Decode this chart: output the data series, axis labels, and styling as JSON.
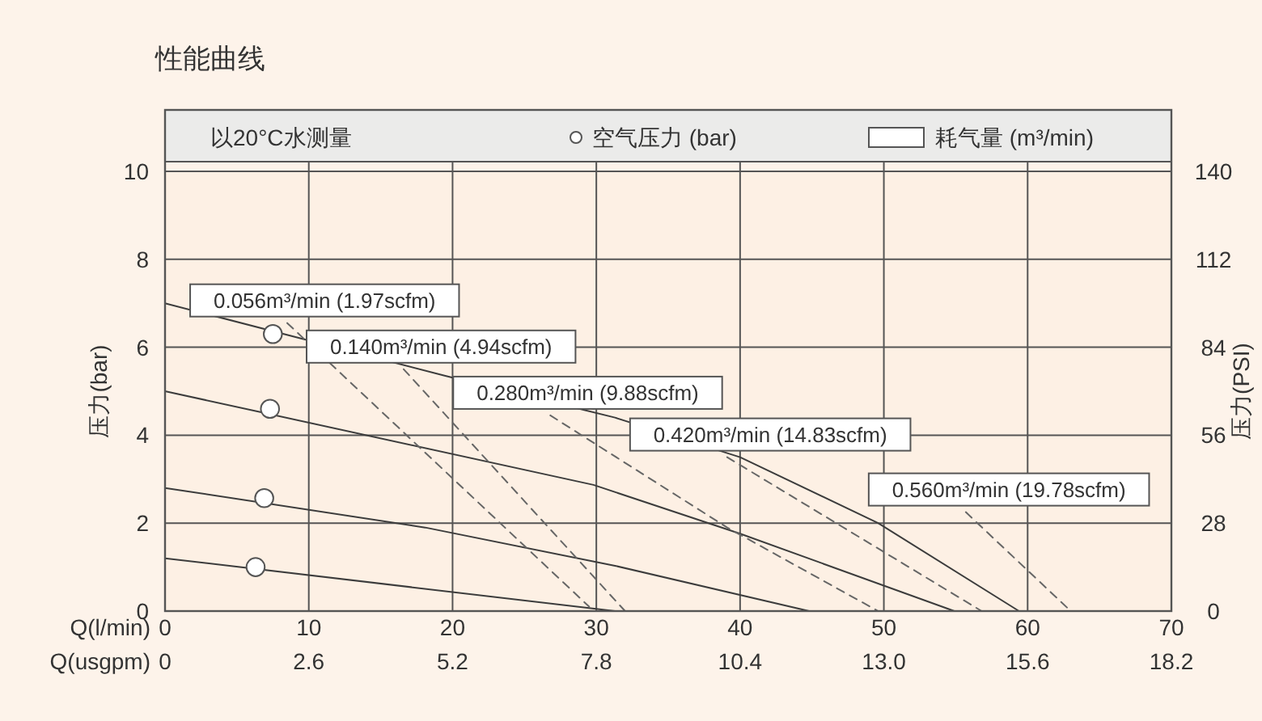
{
  "chart_data": {
    "type": "line",
    "title": "性能曲线",
    "xlabel": "Q(l/min)",
    "x2label": "Q(usgpm)",
    "ylabel": "压力(bar)",
    "y2label": "压力(PSI)",
    "xlim": [
      0,
      70
    ],
    "xticks": [
      0,
      10,
      20,
      30,
      40,
      50,
      60,
      70
    ],
    "x2lim": [
      0,
      18.2
    ],
    "x2ticks": [
      0,
      2.6,
      5.2,
      7.8,
      10.4,
      {
        "value": 13.0,
        "label": "13.0"
      },
      15.6,
      18.2
    ],
    "ylim": [
      0,
      10
    ],
    "yticks": [
      0,
      2,
      4,
      6,
      8,
      10
    ],
    "y2lim": [
      0,
      140
    ],
    "y2ticks": [
      0,
      28,
      56,
      84,
      112,
      140
    ],
    "grid": true,
    "legend": "top",
    "annotations": [
      "以20°C水测量",
      "耗气量 (m³/min)"
    ],
    "series": [
      {
        "color": "#3c3c3c",
        "line_style": "solid",
        "x": [
          0,
          19.5,
          31.3,
          40,
          49.6,
          59.4
        ],
        "values": [
          7.0,
          5.35,
          4.4,
          3.5,
          2.0,
          0
        ]
      },
      {
        "color": "#3c3c3c",
        "line_style": "solid",
        "x": [
          0,
          29.8,
          40,
          54.9
        ],
        "values": [
          5.0,
          2.87,
          1.76,
          0
        ]
      },
      {
        "color": "#3c3c3c",
        "line_style": "solid",
        "x": [
          0,
          18.1,
          31.3,
          44.8
        ],
        "values": [
          2.8,
          1.9,
          1.03,
          0
        ]
      },
      {
        "color": "#3c3c3c",
        "line_style": "solid",
        "x": [
          0,
          31.3
        ],
        "values": [
          1.2,
          0
        ]
      },
      {
        "type": "line",
        "name": "0.056m³/min (1.97scfm)",
        "color": "#666666",
        "line_style": "dashed",
        "x": [
          8.5,
          29.5
        ],
        "values": [
          6.55,
          0.1
        ]
      },
      {
        "type": "line",
        "name": "0.140m³/min (4.94scfm)",
        "color": "#666666",
        "line_style": "dashed",
        "x": [
          16.6,
          32
        ],
        "values": [
          5.5,
          0
        ]
      },
      {
        "type": "line",
        "name": "0.280m³/min (9.88scfm)",
        "color": "#666666",
        "line_style": "dashed",
        "x": [
          26.8,
          39.1,
          49.6
        ],
        "values": [
          4.45,
          1.9,
          0
        ]
      },
      {
        "type": "line",
        "name": "0.420m³/min (14.83scfm)",
        "color": "#666666",
        "line_style": "dashed",
        "x": [
          39.1,
          56.8
        ],
        "values": [
          3.5,
          0
        ]
      },
      {
        "type": "line",
        "name": "0.560m³/min (19.78scfm)",
        "color": "#666666",
        "line_style": "dashed",
        "x": [
          55.7,
          63
        ],
        "values": [
          2.25,
          0
        ]
      },
      {
        "type": "scatter",
        "name": "空气压力 (bar)",
        "color": "#555555",
        "marker": "circle",
        "x": [
          7.5,
          7.3,
          6.9,
          6.3
        ],
        "values": [
          6.3,
          4.6,
          2.57,
          1.0
        ]
      }
    ]
  }
}
